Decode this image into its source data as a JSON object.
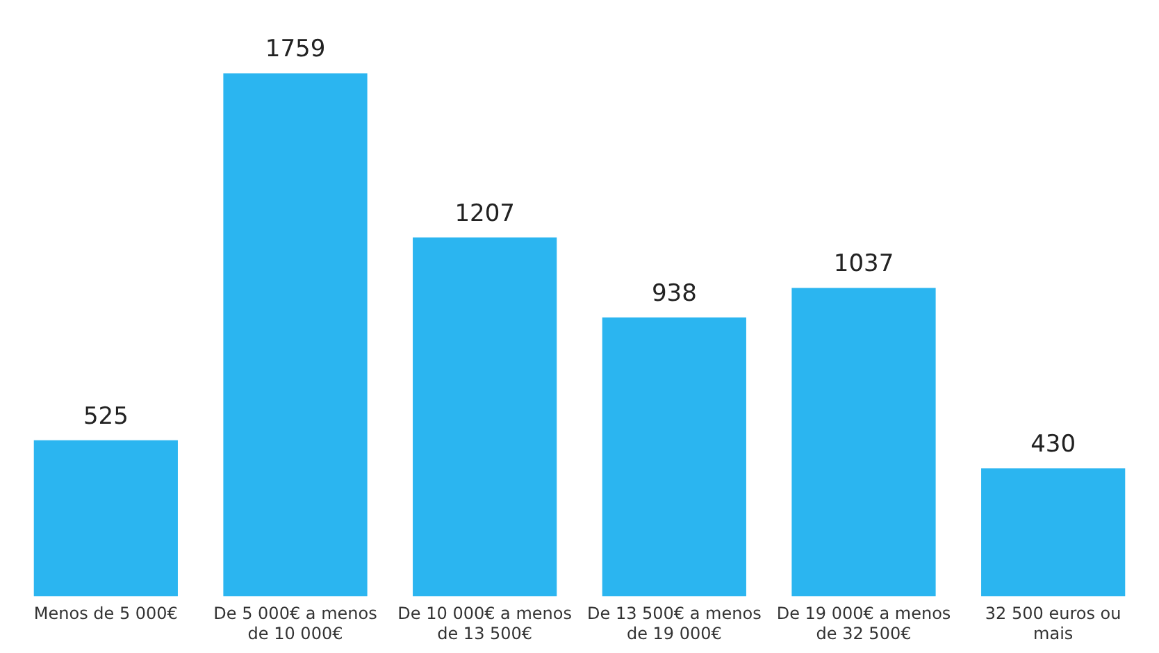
{
  "chart_data": {
    "type": "bar",
    "categories": [
      "Menos de 5 000€",
      "De 5 000€ a menos de 10 000€",
      "De 10 000€ a menos de 13 500€",
      "De 13 500€ a menos de 19 000€",
      "De 19 000€ a menos de 32 500€",
      "32 500 euros ou mais"
    ],
    "values": [
      525,
      1759,
      1207,
      938,
      1037,
      430
    ],
    "color": "#2bb5f0",
    "data_labels": true,
    "grid": false,
    "legend": false
  }
}
